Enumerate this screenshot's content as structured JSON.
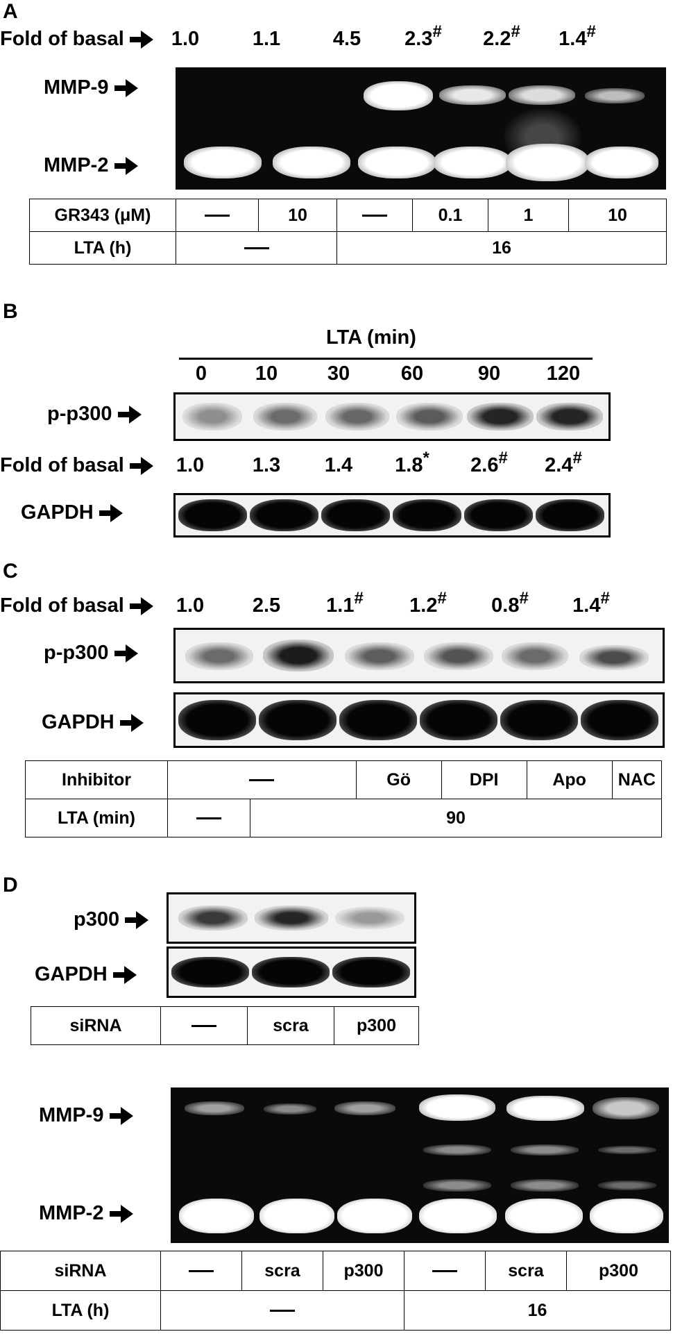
{
  "panelA": {
    "letter": "A",
    "fold_label": "Fold of basal",
    "fold_values": [
      {
        "v": "1.0",
        "mark": ""
      },
      {
        "v": "1.1",
        "mark": ""
      },
      {
        "v": "4.5",
        "mark": ""
      },
      {
        "v": "2.3",
        "mark": "#"
      },
      {
        "v": "2.2",
        "mark": "#"
      },
      {
        "v": "1.4",
        "mark": "#"
      }
    ],
    "mmp9_label": "MMP-9",
    "mmp2_label": "MMP-2",
    "gr343_label": "GR343 (μM)",
    "gr343_values": [
      "—",
      "10",
      "—",
      "0.1",
      "1",
      "10"
    ],
    "lta_label": "LTA (h)",
    "lta_values": [
      "—",
      "16"
    ]
  },
  "panelB": {
    "letter": "B",
    "lta_header": "LTA (min)",
    "time_points": [
      "0",
      "10",
      "30",
      "60",
      "90",
      "120"
    ],
    "pp300_label": "p-p300",
    "fold_label": "Fold of basal",
    "fold_values": [
      {
        "v": "1.0",
        "mark": ""
      },
      {
        "v": "1.3",
        "mark": ""
      },
      {
        "v": "1.4",
        "mark": ""
      },
      {
        "v": "1.8",
        "mark": "*"
      },
      {
        "v": "2.6",
        "mark": "#"
      },
      {
        "v": "2.4",
        "mark": "#"
      }
    ],
    "gapdh_label": "GAPDH"
  },
  "panelC": {
    "letter": "C",
    "fold_label": "Fold of basal",
    "fold_values": [
      {
        "v": "1.0",
        "mark": ""
      },
      {
        "v": "2.5",
        "mark": ""
      },
      {
        "v": "1.1",
        "mark": "#"
      },
      {
        "v": "1.2",
        "mark": "#"
      },
      {
        "v": "0.8",
        "mark": "#"
      },
      {
        "v": "1.4",
        "mark": "#"
      }
    ],
    "pp300_label": "p-p300",
    "gapdh_label": "GAPDH",
    "inhibitor_label": "Inhibitor",
    "inhibitor_values": [
      "—",
      "Gö",
      "DPI",
      "Apo",
      "NAC"
    ],
    "lta_label": "LTA (min)",
    "lta_values": [
      "—",
      "90"
    ]
  },
  "panelD": {
    "letter": "D",
    "p300_label": "p300",
    "gapdh_label": "GAPDH",
    "sirna_label": "siRNA",
    "sirna_values_top": [
      "—",
      "scra",
      "p300"
    ],
    "mmp9_label": "MMP-9",
    "mmp2_label": "MMP-2",
    "sirna_values_bottom": [
      "—",
      "scra",
      "p300",
      "—",
      "scra",
      "p300"
    ],
    "lta_label": "LTA (h)",
    "lta_values": [
      "—",
      "16"
    ]
  }
}
